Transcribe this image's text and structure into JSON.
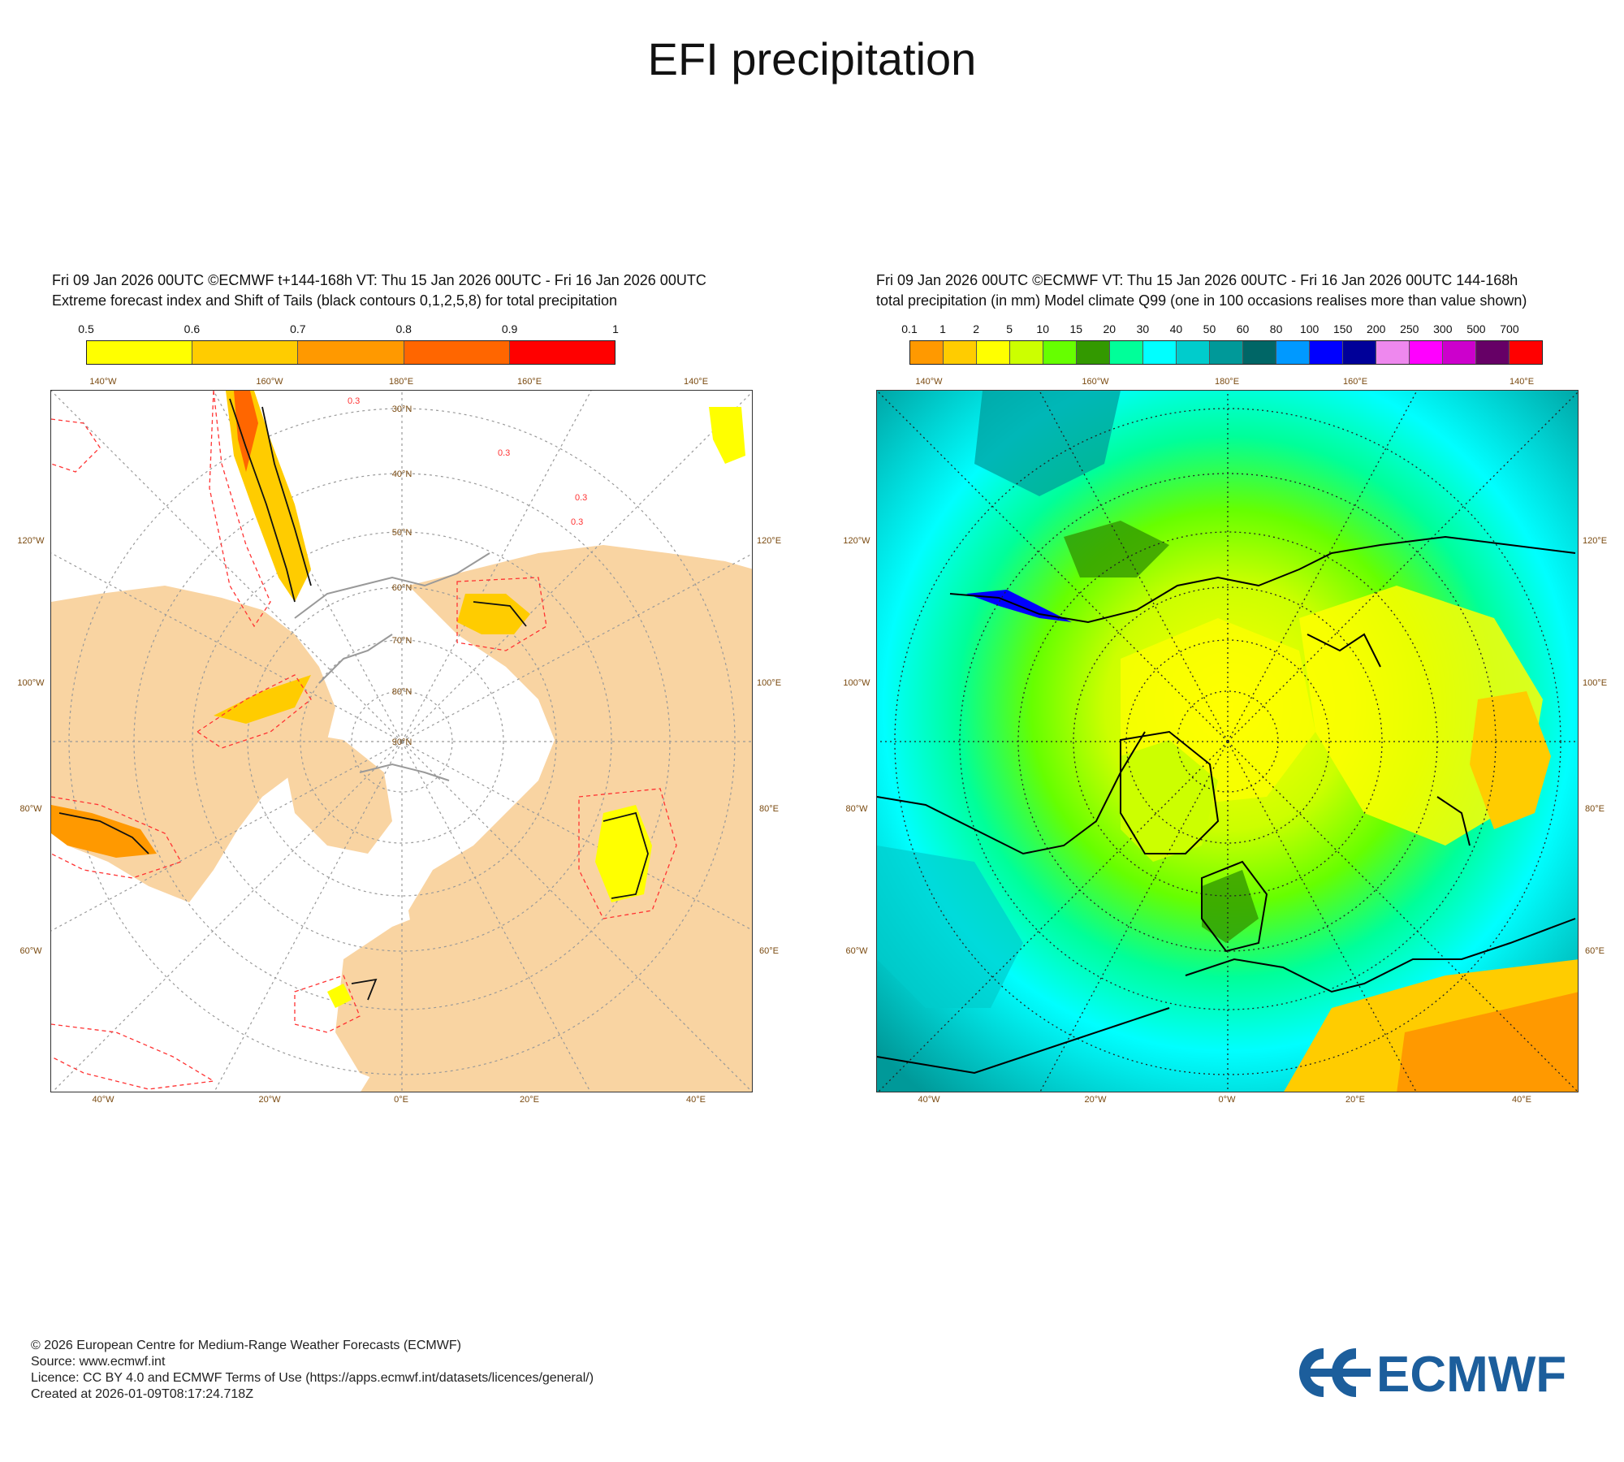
{
  "title": "EFI precipitation",
  "left": {
    "header_line1": "Fri 09 Jan 2026 00UTC ©ECMWF t+144-168h  VT: Thu 15 Jan 2026 00UTC - Fri 16 Jan 2026 00UTC",
    "header_line2": "Extreme forecast index and Shift of Tails (black contours 0,1,2,5,8) for total precipitation",
    "colorbar": {
      "labels": [
        "0.5",
        "0.6",
        "0.7",
        "0.8",
        "0.9",
        "1"
      ],
      "colors": [
        "#ffff00",
        "#ffcc00",
        "#ff9900",
        "#ff6600",
        "#ff0000"
      ]
    },
    "top_lon_labels": [
      "140°W",
      "160°W",
      "180°E",
      "160°E",
      "140°E"
    ],
    "bottom_lon_labels": [
      "40°W",
      "20°W",
      "0°E",
      "20°E",
      "40°E"
    ],
    "left_lon_labels": [
      "120°W",
      "100°W",
      "80°W",
      "60°W"
    ],
    "right_lon_labels": [
      "120°E",
      "100°E",
      "80°E",
      "60°E"
    ],
    "lat_labels": [
      "30°N",
      "40°N",
      "50°N",
      "60°N",
      "70°N",
      "80°N",
      "90°N"
    ],
    "contour_labels": [
      "0.3",
      "0.3",
      "0.3",
      "0.3"
    ]
  },
  "right": {
    "header_line1": "Fri 09 Jan 2026 00UTC ©ECMWF VT: Thu 15 Jan 2026 00UTC - Fri 16 Jan 2026 00UTC    144-168h",
    "header_line2": "total precipitation (in mm)  Model climate Q99 (one in 100 occasions realises more than value shown)",
    "colorbar": {
      "labels": [
        "0.1",
        "1",
        "2",
        "5",
        "10",
        "15",
        "20",
        "30",
        "40",
        "50",
        "60",
        "80",
        "100",
        "150",
        "200",
        "250",
        "300",
        "500",
        "700"
      ],
      "colors": [
        "#ff9900",
        "#ffcc00",
        "#ffff00",
        "#ccff00",
        "#66ff00",
        "#339900",
        "#00ff99",
        "#00ffff",
        "#00cccc",
        "#009999",
        "#006666",
        "#0099ff",
        "#0000ff",
        "#000099",
        "#ee88ee",
        "#ff00ff",
        "#cc00cc",
        "#660066",
        "#ff0000"
      ]
    },
    "top_lon_labels": [
      "140°W",
      "160°W",
      "180°E",
      "160°E",
      "140°E"
    ],
    "bottom_lon_labels": [
      "40°W",
      "20°W",
      "0°W",
      "20°E",
      "40°E"
    ],
    "left_lon_labels": [
      "120°W",
      "100°W",
      "80°W",
      "60°W"
    ],
    "right_lon_labels": [
      "120°E",
      "100°E",
      "80°E",
      "60°E"
    ]
  },
  "footer": {
    "copyright": "© 2026 European Centre for Medium-Range Weather Forecasts (ECMWF)",
    "source": "Source: www.ecmwf.int",
    "licence": "Licence: CC BY 4.0 and ECMWF Terms of Use (https://apps.ecmwf.int/datasets/licences/general/)",
    "created": "Created at 2026-01-09T08:17:24.718Z"
  },
  "logo": {
    "text": "ECMWF",
    "color": "#1c5e9c"
  },
  "colors": {
    "land": "#f9d4a2",
    "ocean": "#ffffff",
    "grid": "#999999",
    "label_brown": "#7a4a10"
  }
}
